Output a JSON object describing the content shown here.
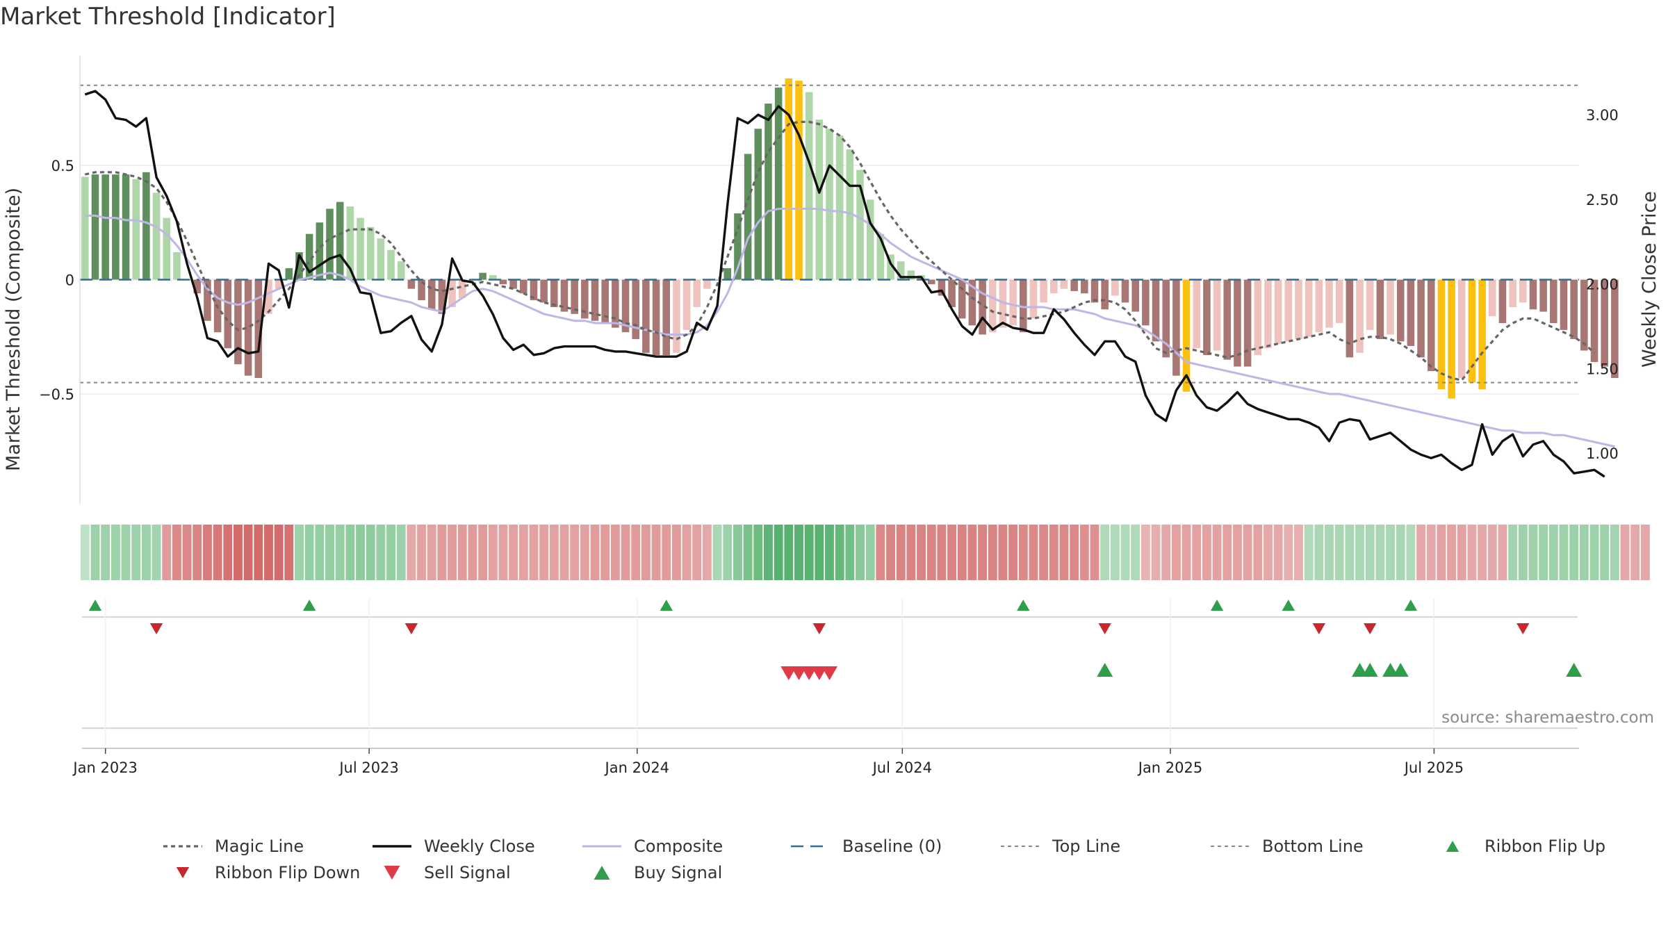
{
  "title": "Market Threshold [Indicator]",
  "source_text": "source: sharemaestro.com",
  "colors": {
    "magic_line": "#666666",
    "weekly_close": "#111111",
    "composite": "#bdb6e6",
    "baseline": "#2c6f9a",
    "threshold_lines": "#888888",
    "flip_up": "#2e9e4a",
    "flip_down": "#c8282d",
    "sell": "#e03a47",
    "buy": "#2e9e4a",
    "bar_pos_strong": "#5f8f5c",
    "bar_pos_weak": "#aed6a8",
    "bar_neg_strong": "#a87774",
    "bar_neg_weak": "#efc3bd",
    "bar_extreme": "#fbc10e"
  },
  "chart_data": {
    "type": "bar+line",
    "y_left_label": "Market Threshold (Composite)",
    "y_right_label": "Weekly Close Price",
    "y_left_ticks": [
      0.5,
      0,
      -0.5
    ],
    "y_left_tick_labels": [
      "0.5",
      "0",
      "−0.5"
    ],
    "y_right_ticks": [
      3.0,
      2.5,
      2.0,
      1.5,
      1.0
    ],
    "y_right_tick_labels": [
      "3.00",
      "2.50",
      "2.00",
      "1.50",
      "1.00"
    ],
    "y_left_range": [
      -0.98,
      0.98
    ],
    "y_right_range": [
      0.7,
      3.35
    ],
    "x_ticks": [
      "2023-01-01",
      "2023-07-01",
      "2024-01-01",
      "2024-07-01",
      "2025-01-01",
      "2025-07-01"
    ],
    "x_tick_labels": [
      "Jan 2023",
      "Jul 2023",
      "Jan 2024",
      "Jul 2024",
      "Jan 2025",
      "Jul 2025"
    ],
    "top_line": 0.85,
    "bottom_line": -0.45,
    "baseline": 0,
    "start_date": "2022-12-18",
    "week_count": 147,
    "composite_bars": [
      0.45,
      0.46,
      0.46,
      0.46,
      0.46,
      0.44,
      0.47,
      0.38,
      0.27,
      0.12,
      0.0,
      -0.06,
      -0.18,
      -0.23,
      -0.3,
      -0.37,
      -0.42,
      -0.43,
      -0.15,
      -0.04,
      0.05,
      0.12,
      0.2,
      0.25,
      0.31,
      0.34,
      0.32,
      0.27,
      0.23,
      0.18,
      0.13,
      0.08,
      -0.04,
      -0.09,
      -0.13,
      -0.15,
      -0.12,
      -0.08,
      0.0,
      0.03,
      0.02,
      -0.02,
      -0.04,
      -0.06,
      -0.09,
      -0.1,
      -0.12,
      -0.14,
      -0.15,
      -0.17,
      -0.18,
      -0.19,
      -0.21,
      -0.23,
      -0.26,
      -0.32,
      -0.33,
      -0.33,
      -0.32,
      -0.22,
      -0.12,
      -0.04,
      0.0,
      0.05,
      0.29,
      0.55,
      0.66,
      0.77,
      0.84,
      0.88,
      0.87,
      0.82,
      0.7,
      0.66,
      0.63,
      0.57,
      0.48,
      0.35,
      0.2,
      0.11,
      0.08,
      0.04,
      0.02,
      -0.02,
      -0.07,
      -0.12,
      -0.17,
      -0.2,
      -0.24,
      -0.23,
      -0.21,
      -0.2,
      -0.23,
      -0.17,
      -0.1,
      -0.06,
      -0.04,
      -0.05,
      -0.06,
      -0.1,
      -0.13,
      -0.07,
      -0.1,
      -0.14,
      -0.2,
      -0.27,
      -0.34,
      -0.42,
      -0.49,
      -0.3,
      -0.33,
      -0.31,
      -0.35,
      -0.38,
      -0.38,
      -0.33,
      -0.3,
      -0.28,
      -0.27,
      -0.26,
      -0.25,
      -0.23,
      -0.21,
      -0.19,
      -0.34,
      -0.32,
      -0.22,
      -0.26,
      -0.24,
      -0.27,
      -0.29,
      -0.34,
      -0.4,
      -0.48,
      -0.52,
      -0.43,
      -0.45,
      -0.48,
      -0.16,
      -0.19,
      -0.12,
      -0.1,
      -0.13,
      -0.14,
      -0.19,
      -0.22,
      -0.26,
      -0.31,
      -0.36,
      -0.38,
      -0.43
    ],
    "composite_line": [
      0.28,
      0.28,
      0.27,
      0.27,
      0.26,
      0.26,
      0.25,
      0.23,
      0.2,
      0.15,
      0.09,
      0.02,
      -0.04,
      -0.08,
      -0.1,
      -0.11,
      -0.1,
      -0.08,
      -0.06,
      -0.04,
      -0.02,
      0.0,
      0.01,
      0.02,
      0.03,
      0.02,
      0.0,
      -0.03,
      -0.05,
      -0.07,
      -0.08,
      -0.09,
      -0.1,
      -0.12,
      -0.13,
      -0.14,
      -0.11,
      -0.08,
      -0.05,
      -0.04,
      -0.05,
      -0.07,
      -0.09,
      -0.11,
      -0.13,
      -0.15,
      -0.16,
      -0.17,
      -0.18,
      -0.18,
      -0.19,
      -0.19,
      -0.19,
      -0.2,
      -0.21,
      -0.22,
      -0.23,
      -0.24,
      -0.24,
      -0.24,
      -0.23,
      -0.2,
      -0.14,
      -0.06,
      0.05,
      0.18,
      0.25,
      0.3,
      0.31,
      0.31,
      0.31,
      0.31,
      0.31,
      0.3,
      0.3,
      0.29,
      0.27,
      0.24,
      0.2,
      0.16,
      0.13,
      0.1,
      0.08,
      0.06,
      0.04,
      0.02,
      0.0,
      -0.03,
      -0.06,
      -0.08,
      -0.1,
      -0.11,
      -0.12,
      -0.12,
      -0.12,
      -0.13,
      -0.13,
      -0.13,
      -0.14,
      -0.15,
      -0.17,
      -0.18,
      -0.19,
      -0.2,
      -0.22,
      -0.25,
      -0.28,
      -0.32,
      -0.36,
      -0.37,
      -0.38,
      -0.39,
      -0.4,
      -0.41,
      -0.42,
      -0.43,
      -0.44,
      -0.45,
      -0.46,
      -0.47,
      -0.48,
      -0.49,
      -0.5,
      -0.5,
      -0.51,
      -0.52,
      -0.53,
      -0.54,
      -0.55,
      -0.56,
      -0.57,
      -0.58,
      -0.59,
      -0.6,
      -0.61,
      -0.62,
      -0.63,
      -0.64,
      -0.65,
      -0.66,
      -0.66,
      -0.67,
      -0.67,
      -0.67,
      -0.68,
      -0.68,
      -0.69,
      -0.7,
      -0.71,
      -0.72,
      -0.73
    ],
    "magic_line": [
      0.46,
      0.47,
      0.47,
      0.47,
      0.46,
      0.45,
      0.43,
      0.4,
      0.34,
      0.26,
      0.17,
      0.07,
      -0.03,
      -0.12,
      -0.18,
      -0.22,
      -0.21,
      -0.18,
      -0.14,
      -0.09,
      -0.04,
      0.02,
      0.08,
      0.14,
      0.18,
      0.2,
      0.22,
      0.22,
      0.22,
      0.2,
      0.16,
      0.1,
      0.04,
      -0.01,
      -0.04,
      -0.05,
      -0.04,
      -0.03,
      -0.02,
      -0.01,
      -0.02,
      -0.03,
      -0.04,
      -0.06,
      -0.08,
      -0.1,
      -0.11,
      -0.12,
      -0.13,
      -0.14,
      -0.15,
      -0.16,
      -0.17,
      -0.19,
      -0.2,
      -0.22,
      -0.23,
      -0.25,
      -0.26,
      -0.24,
      -0.2,
      -0.12,
      -0.02,
      0.1,
      0.22,
      0.35,
      0.47,
      0.56,
      0.62,
      0.68,
      0.69,
      0.69,
      0.68,
      0.66,
      0.63,
      0.58,
      0.51,
      0.43,
      0.35,
      0.28,
      0.22,
      0.17,
      0.12,
      0.08,
      0.04,
      0.0,
      -0.04,
      -0.08,
      -0.11,
      -0.14,
      -0.15,
      -0.16,
      -0.17,
      -0.17,
      -0.16,
      -0.15,
      -0.14,
      -0.12,
      -0.1,
      -0.09,
      -0.09,
      -0.1,
      -0.13,
      -0.18,
      -0.24,
      -0.3,
      -0.32,
      -0.31,
      -0.3,
      -0.31,
      -0.32,
      -0.33,
      -0.34,
      -0.33,
      -0.31,
      -0.3,
      -0.29,
      -0.28,
      -0.27,
      -0.26,
      -0.25,
      -0.24,
      -0.23,
      -0.26,
      -0.28,
      -0.26,
      -0.25,
      -0.25,
      -0.26,
      -0.28,
      -0.31,
      -0.34,
      -0.38,
      -0.41,
      -0.43,
      -0.44,
      -0.38,
      -0.32,
      -0.27,
      -0.22,
      -0.19,
      -0.17,
      -0.17,
      -0.19,
      -0.21,
      -0.23,
      -0.25,
      -0.28,
      -0.32
    ],
    "weekly_close": [
      3.12,
      3.14,
      3.09,
      2.98,
      2.97,
      2.93,
      2.98,
      2.63,
      2.52,
      2.37,
      2.12,
      1.92,
      1.68,
      1.66,
      1.57,
      1.62,
      1.59,
      1.6,
      2.12,
      2.08,
      1.86,
      2.17,
      2.07,
      2.11,
      2.15,
      2.17,
      2.09,
      1.95,
      1.94,
      1.71,
      1.72,
      1.77,
      1.81,
      1.67,
      1.6,
      1.76,
      2.15,
      2.02,
      2.01,
      1.93,
      1.82,
      1.68,
      1.61,
      1.64,
      1.58,
      1.59,
      1.62,
      1.63,
      1.63,
      1.63,
      1.63,
      1.61,
      1.6,
      1.6,
      1.59,
      1.58,
      1.57,
      1.57,
      1.57,
      1.6,
      1.77,
      1.73,
      1.87,
      2.47,
      2.98,
      2.95,
      3.0,
      2.97,
      3.05,
      3.0,
      2.88,
      2.72,
      2.54,
      2.7,
      2.64,
      2.58,
      2.58,
      2.36,
      2.27,
      2.12,
      2.04,
      2.04,
      2.04,
      1.95,
      1.96,
      1.85,
      1.75,
      1.7,
      1.8,
      1.73,
      1.77,
      1.74,
      1.73,
      1.71,
      1.71,
      1.85,
      1.79,
      1.71,
      1.64,
      1.58,
      1.66,
      1.66,
      1.57,
      1.54,
      1.34,
      1.23,
      1.19,
      1.37,
      1.46,
      1.34,
      1.27,
      1.25,
      1.3,
      1.36,
      1.29,
      1.26,
      1.24,
      1.22,
      1.2,
      1.2,
      1.18,
      1.15,
      1.07,
      1.18,
      1.2,
      1.19,
      1.08,
      1.1,
      1.12,
      1.07,
      1.02,
      0.99,
      0.97,
      0.99,
      0.94,
      0.9,
      0.93,
      1.17,
      0.99,
      1.07,
      1.11,
      0.98,
      1.05,
      1.07,
      0.99,
      0.95,
      0.88,
      0.89,
      0.9,
      0.86
    ],
    "ribbon": [
      0.2,
      0.45,
      0.45,
      0.45,
      0.45,
      0.45,
      0.45,
      0.4,
      -0.55,
      -0.7,
      -0.7,
      -0.75,
      -0.8,
      -0.85,
      -0.9,
      -0.95,
      -0.95,
      -0.95,
      -0.95,
      -0.95,
      -0.9,
      0.45,
      0.5,
      0.5,
      0.5,
      0.5,
      0.55,
      0.55,
      0.55,
      0.5,
      0.5,
      0.45,
      -0.45,
      -0.5,
      -0.5,
      -0.55,
      -0.55,
      -0.55,
      -0.55,
      -0.55,
      -0.5,
      -0.5,
      -0.5,
      -0.5,
      -0.5,
      -0.5,
      -0.5,
      -0.5,
      -0.5,
      -0.5,
      -0.55,
      -0.55,
      -0.55,
      -0.55,
      -0.55,
      -0.55,
      -0.55,
      -0.55,
      -0.55,
      -0.5,
      -0.5,
      -0.45,
      0.35,
      0.45,
      0.6,
      0.7,
      0.8,
      0.9,
      0.95,
      0.95,
      0.95,
      0.95,
      0.95,
      0.9,
      0.85,
      0.75,
      0.6,
      0.5,
      -0.7,
      -0.75,
      -0.75,
      -0.75,
      -0.75,
      -0.75,
      -0.75,
      -0.75,
      -0.75,
      -0.75,
      -0.75,
      -0.75,
      -0.75,
      -0.75,
      -0.7,
      -0.7,
      -0.7,
      -0.7,
      -0.7,
      -0.7,
      -0.65,
      -0.65,
      0.3,
      0.3,
      0.3,
      0.3,
      -0.35,
      -0.4,
      -0.45,
      -0.5,
      -0.5,
      -0.5,
      -0.5,
      -0.5,
      -0.5,
      -0.5,
      -0.5,
      -0.5,
      -0.45,
      -0.45,
      -0.4,
      -0.4,
      0.3,
      0.35,
      0.35,
      0.35,
      0.35,
      0.35,
      0.35,
      0.35,
      0.35,
      0.35,
      0.3,
      -0.45,
      -0.45,
      -0.5,
      -0.5,
      -0.5,
      -0.45,
      -0.45,
      -0.45,
      -0.45,
      0.4,
      0.45,
      0.45,
      0.45,
      0.45,
      0.45,
      0.45,
      0.45,
      0.45,
      0.45,
      0.4,
      -0.45,
      -0.45,
      -0.45
    ],
    "ribbon_flip_up": [
      1,
      22,
      57,
      92,
      111,
      118,
      130
    ],
    "ribbon_flip_down": [
      7,
      32,
      72,
      100,
      121,
      126,
      141
    ],
    "sell_signals": [
      69,
      70,
      71,
      72,
      73
    ],
    "buy_signals": [
      100,
      125,
      126,
      128,
      129,
      146
    ],
    "legend": [
      {
        "key": "magic_line",
        "label": "Magic Line"
      },
      {
        "key": "weekly_close",
        "label": "Weekly Close"
      },
      {
        "key": "composite",
        "label": "Composite"
      },
      {
        "key": "baseline",
        "label": "Baseline (0)"
      },
      {
        "key": "top_line",
        "label": "Top Line"
      },
      {
        "key": "bottom_line",
        "label": "Bottom Line"
      },
      {
        "key": "flip_up",
        "label": "Ribbon Flip Up"
      },
      {
        "key": "flip_down",
        "label": "Ribbon Flip Down"
      },
      {
        "key": "sell",
        "label": "Sell Signal"
      },
      {
        "key": "buy",
        "label": "Buy Signal"
      }
    ]
  }
}
